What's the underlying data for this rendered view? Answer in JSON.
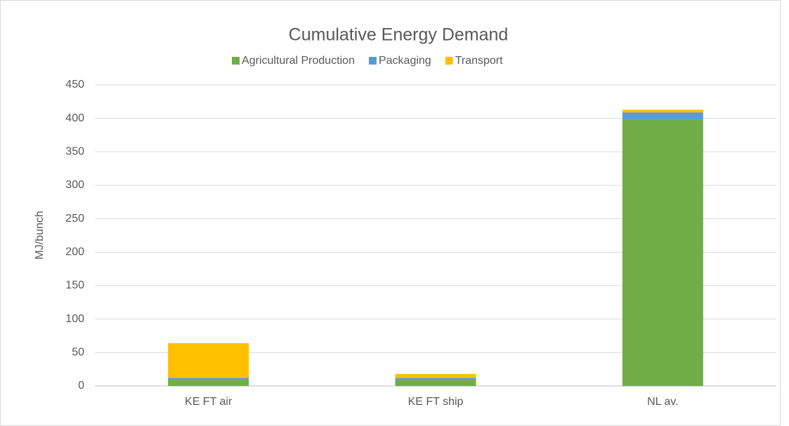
{
  "chart_data": {
    "type": "bar",
    "stacked": true,
    "title": "Cumulative Energy Demand",
    "y_label": "MJ/bunch",
    "categories": [
      "KE FT air",
      "KE FT ship",
      "NL av."
    ],
    "series": [
      {
        "name": "Agricultural Production",
        "color": "#70ad47",
        "values": [
          9,
          9,
          398
        ]
      },
      {
        "name": "Packaging",
        "color": "#5b9bd5",
        "values": [
          3,
          3,
          11
        ]
      },
      {
        "name": "Transport",
        "color": "#ffc000",
        "values": [
          52,
          6,
          4
        ]
      }
    ],
    "ylim": [
      0,
      450
    ],
    "yticks": [
      0,
      50,
      100,
      150,
      200,
      250,
      300,
      350,
      400,
      450
    ],
    "grid": true,
    "legend": "top"
  }
}
